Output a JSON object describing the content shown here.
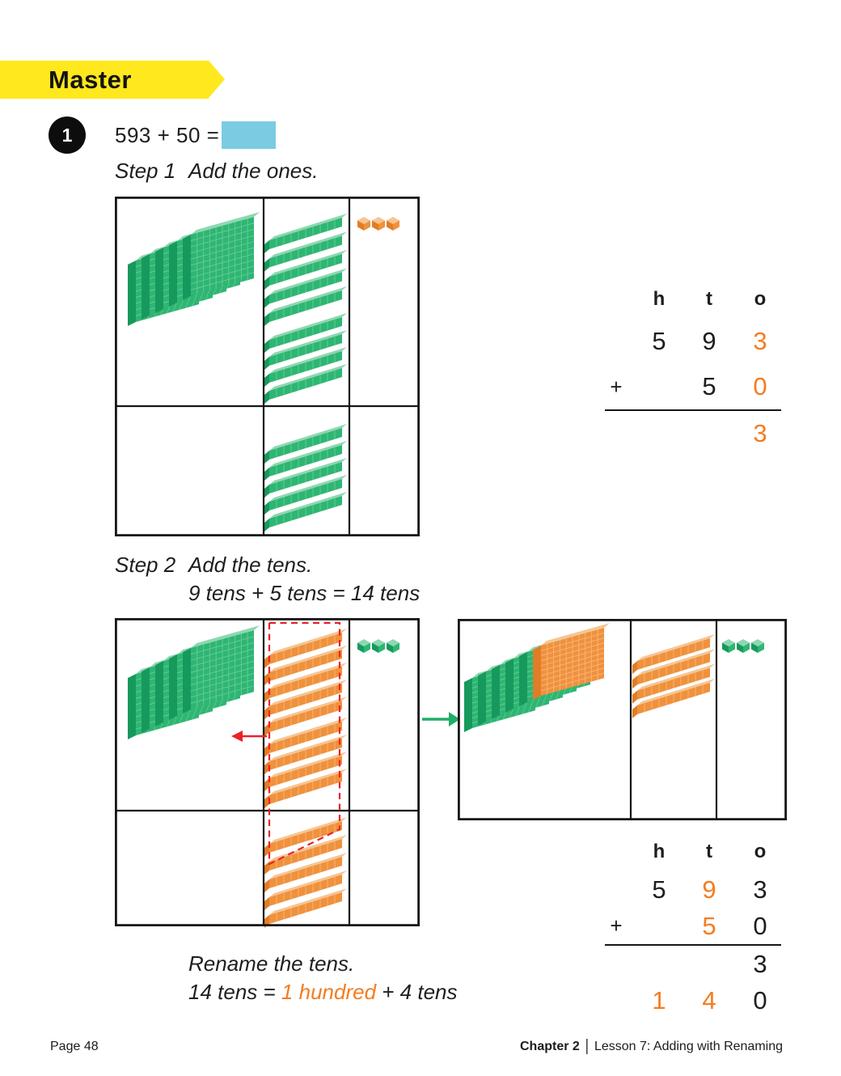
{
  "banner": {
    "label": "Master"
  },
  "problem": {
    "badge": "1",
    "equation": "593 + 50 ="
  },
  "step1": {
    "label": "Step 1",
    "instruction": "Add the ones."
  },
  "step2": {
    "label": "Step 2",
    "instruction": "Add the tens.",
    "detail": "9 tens + 5 tens = 14 tens"
  },
  "rename": {
    "title": "Rename the tens.",
    "equation_prefix": "14 tens = ",
    "equation_highlight": "1 hundred",
    "equation_suffix": " + 4 tens"
  },
  "pv1": {
    "headers": [
      "h",
      "t",
      "o"
    ],
    "plus": "+",
    "row1": [
      "5",
      "9",
      "3"
    ],
    "row2": [
      "5",
      "0"
    ],
    "sum_ones": "3"
  },
  "pv2": {
    "headers": [
      "h",
      "t",
      "o"
    ],
    "plus": "+",
    "row1": [
      "5",
      "9",
      "3"
    ],
    "row2": [
      "5",
      "0"
    ],
    "sum_ones": "3",
    "sum_row": [
      "1",
      "4",
      "0"
    ]
  },
  "footer": {
    "page": "Page 48",
    "chapter": "Chapter 2",
    "separator": "|",
    "lesson": "Lesson 7: Adding with Renaming"
  },
  "colors": {
    "banner_yellow": "#ffe81d",
    "answer_blue": "#7bcbe3",
    "accent_orange": "#f47c20",
    "block_green": "#2eb673",
    "block_orange": "#f0913c",
    "highlight_red": "#ec2128",
    "arrow_green": "#1fad68",
    "line_black": "#161616"
  },
  "diagrams": {
    "step1": {
      "hundreds_row1_flats": [
        {
          "count": 5,
          "color": "green"
        }
      ],
      "tens_row1_groups": [
        {
          "count": 5,
          "color": "green"
        },
        {
          "count": 4,
          "color": "green"
        }
      ],
      "ones_row1_cubes": {
        "count": 3,
        "color": "orange"
      },
      "tens_row2_groups": [
        {
          "count": 5,
          "color": "green"
        }
      ]
    },
    "step2_left": {
      "hundreds_row1_flats": [
        {
          "count": 5,
          "color": "green"
        }
      ],
      "tens_row1_groups": [
        {
          "count": 5,
          "color": "orange"
        },
        {
          "count": 4,
          "color": "orange"
        }
      ],
      "ones_row1_cubes": {
        "count": 3,
        "color": "green"
      },
      "tens_row2_groups": [
        {
          "count": 5,
          "color": "orange"
        }
      ],
      "annotations": {
        "dashed_group_box": true,
        "red_arrow_to_hundreds": true
      }
    },
    "step2_right": {
      "hundreds_flats": [
        {
          "count": 5,
          "color": "green"
        },
        {
          "count": 1,
          "color": "orange"
        }
      ],
      "tens_groups": [
        {
          "count": 4,
          "color": "orange"
        }
      ],
      "ones_cubes": {
        "count": 3,
        "color": "green"
      }
    }
  }
}
